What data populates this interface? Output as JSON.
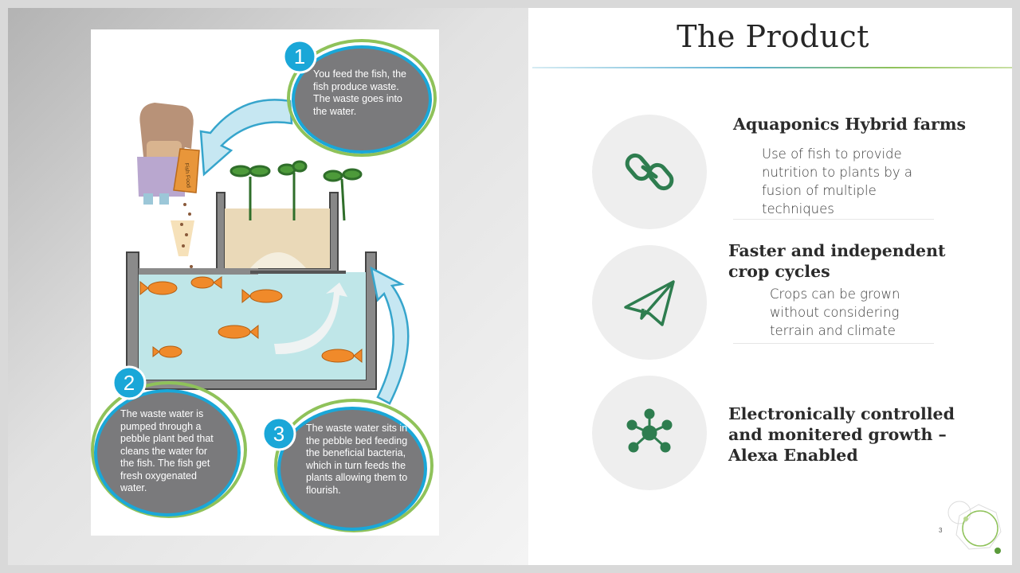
{
  "title": "The Product",
  "illustration": {
    "bag_label": "Fish Food",
    "steps": [
      {
        "number": "1",
        "text": "You feed the fish, the fish produce waste. The waste goes into the water."
      },
      {
        "number": "2",
        "text": "The waste water is pumped through a pebble plant bed that cleans the water for the fish. The fish get fresh oxygenated water."
      },
      {
        "number": "3",
        "text": "The waste water sits in the pebble bed feeding the beneficial bacteria, which in turn feeds the plants allowing them to flourish."
      }
    ]
  },
  "features": [
    {
      "icon": "chain-link-icon",
      "heading": "Aquaponics Hybrid farms",
      "description": "Use of fish to provide nutrition to plants by a fusion of multiple techniques"
    },
    {
      "icon": "paper-plane-icon",
      "heading": "Faster and independent crop cycles",
      "description": "Crops can be grown without considering terrain and climate"
    },
    {
      "icon": "network-hub-icon",
      "heading": "Electronically controlled and monitered growth – Alexa Enabled",
      "description": ""
    }
  ],
  "page_number": "3",
  "colors": {
    "accent_green": "#2e7d4f",
    "circle_bg": "#eeeeee",
    "bubble_gray": "#7a7a7c",
    "step_blue": "#1aa7d8",
    "rule_green": "#8fc25a"
  }
}
